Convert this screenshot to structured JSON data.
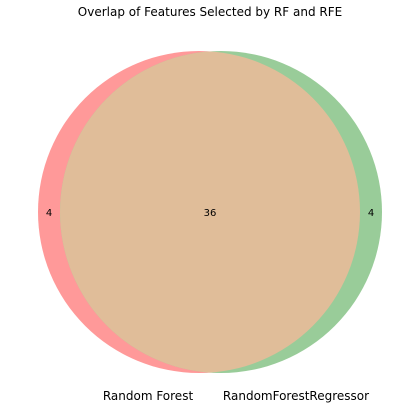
{
  "title": "Overlap of Features Selected by RF and RFE",
  "sets": [
    {
      "name": "Random Forest",
      "color": "#ff9999",
      "only_count": "4"
    },
    {
      "name": "RandomForestRegressor",
      "color": "#99cc99",
      "only_count": "4"
    }
  ],
  "intersection": {
    "count": "36",
    "color": "#e0bd99"
  }
}
